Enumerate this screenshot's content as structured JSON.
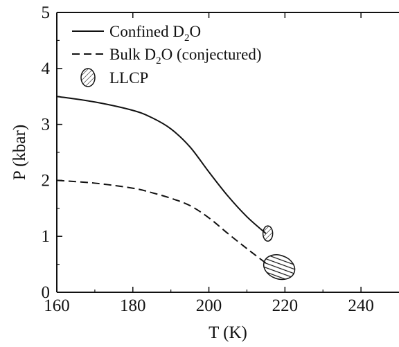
{
  "chart_data": {
    "type": "line",
    "xlabel": "T (K)",
    "ylabel": "P (kbar)",
    "xlim": [
      160,
      250
    ],
    "ylim": [
      0,
      5
    ],
    "xticks": [
      160,
      180,
      200,
      220,
      240
    ],
    "yticks": [
      0,
      1,
      2,
      3,
      4,
      5
    ],
    "grid": false,
    "legend_position": "top-left",
    "legend": {
      "confined": {
        "pre": "Confined D",
        "sub": "2",
        "post": "O"
      },
      "bulk": {
        "pre": "Bulk D",
        "sub": "2",
        "post": "O (conjectured)"
      },
      "llcp": "LLCP"
    },
    "series": [
      {
        "name": "Confined D2O",
        "style": "solid",
        "x": [
          160,
          170,
          180,
          185,
          190,
          195,
          200,
          205,
          210,
          215
        ],
        "y": [
          3.5,
          3.4,
          3.25,
          3.12,
          2.92,
          2.6,
          2.15,
          1.72,
          1.35,
          1.05
        ]
      },
      {
        "name": "Bulk D2O (conjectured)",
        "style": "dashed",
        "x": [
          160,
          170,
          180,
          185,
          190,
          195,
          200,
          205,
          210,
          215
        ],
        "y": [
          2.0,
          1.95,
          1.86,
          1.78,
          1.68,
          1.55,
          1.33,
          1.05,
          0.78,
          0.52
        ]
      }
    ],
    "llcp_markers": [
      {
        "series": "Confined D2O",
        "x": 215.5,
        "y": 1.05,
        "hatch": "diagonal"
      },
      {
        "series": "Bulk D2O (conjectured)",
        "x": 218.5,
        "y": 0.45,
        "hatch": "horizontal"
      }
    ]
  }
}
